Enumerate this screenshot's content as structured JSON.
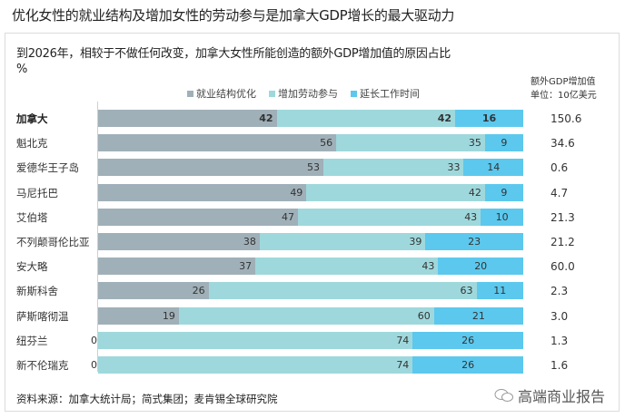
{
  "page": {
    "title": "优化女性的就业结构及增加女性的劳动参与是加拿大GDP增长的最大驱动力",
    "subtitle_line1": "到2026年，相较于不做任何改变，加拿大女性所能创造的额外GDP增加值的原因占比",
    "subtitle_line2": "%",
    "unit_line1": "额外GDP增加值",
    "unit_line2": "单位：10亿美元",
    "source": "资料来源：加拿大统计局；简式集团；麦肯锡全球研究院",
    "watermark": "高端商业报告"
  },
  "legend": [
    {
      "label": "就业结构优化",
      "color": "#a0b0b8"
    },
    {
      "label": "增加劳动参与",
      "color": "#9ed8dc"
    },
    {
      "label": "延长工作时间",
      "color": "#5cc8ee"
    }
  ],
  "chart_data": {
    "type": "bar",
    "orientation": "horizontal",
    "stacked": true,
    "title": "到2026年，相较于不做任何改变，加拿大女性所能创造的额外GDP增加值的原因占比 %",
    "categories": [
      "加拿大",
      "魁北克",
      "爱德华王子岛",
      "马尼托巴",
      "艾伯塔",
      "不列颠哥伦比亚",
      "安大略",
      "新斯科舍",
      "萨斯喀彻温",
      "纽芬兰",
      "新不伦瑞克"
    ],
    "series": [
      {
        "name": "就业结构优化",
        "color": "#a0b0b8",
        "values": [
          42,
          56,
          53,
          49,
          47,
          38,
          37,
          26,
          19,
          0,
          0
        ]
      },
      {
        "name": "增加劳动参与",
        "color": "#9ed8dc",
        "values": [
          42,
          35,
          33,
          42,
          43,
          39,
          43,
          63,
          60,
          74,
          74
        ]
      },
      {
        "name": "延长工作时间",
        "color": "#5cc8ee",
        "values": [
          16,
          9,
          14,
          9,
          10,
          23,
          20,
          11,
          21,
          26,
          26
        ]
      }
    ],
    "extra_column": {
      "title": "额外GDP增加值 单位：10亿美元",
      "values": [
        "150.6",
        "34.6",
        "0.6",
        "4.7",
        "21.3",
        "21.2",
        "60.0",
        "2.3",
        "3.0",
        "1.3",
        "1.6"
      ]
    },
    "xlim": [
      0,
      100
    ],
    "legend_position": "top",
    "grid": false
  },
  "rows": [
    {
      "label": "加拿大",
      "a": "42",
      "b": "42",
      "c": "16",
      "gdp": "150.6"
    },
    {
      "label": "魁北克",
      "a": "56",
      "b": "35",
      "c": "9",
      "gdp": "34.6"
    },
    {
      "label": "爱德华王子岛",
      "a": "53",
      "b": "33",
      "c": "14",
      "gdp": "0.6"
    },
    {
      "label": "马尼托巴",
      "a": "49",
      "b": "42",
      "c": "9",
      "gdp": "4.7"
    },
    {
      "label": "艾伯塔",
      "a": "47",
      "b": "43",
      "c": "10",
      "gdp": "21.3"
    },
    {
      "label": "不列颠哥伦比亚",
      "a": "38",
      "b": "39",
      "c": "23",
      "gdp": "21.2"
    },
    {
      "label": "安大略",
      "a": "37",
      "b": "43",
      "c": "20",
      "gdp": "60.0"
    },
    {
      "label": "新斯科舍",
      "a": "26",
      "b": "63",
      "c": "11",
      "gdp": "2.3"
    },
    {
      "label": "萨斯喀彻温",
      "a": "19",
      "b": "60",
      "c": "21",
      "gdp": "3.0"
    },
    {
      "label": "纽芬兰",
      "a": "0",
      "b": "74",
      "c": "26",
      "gdp": "1.3"
    },
    {
      "label": "新不伦瑞克",
      "a": "0",
      "b": "74",
      "c": "26",
      "gdp": "1.6"
    }
  ]
}
